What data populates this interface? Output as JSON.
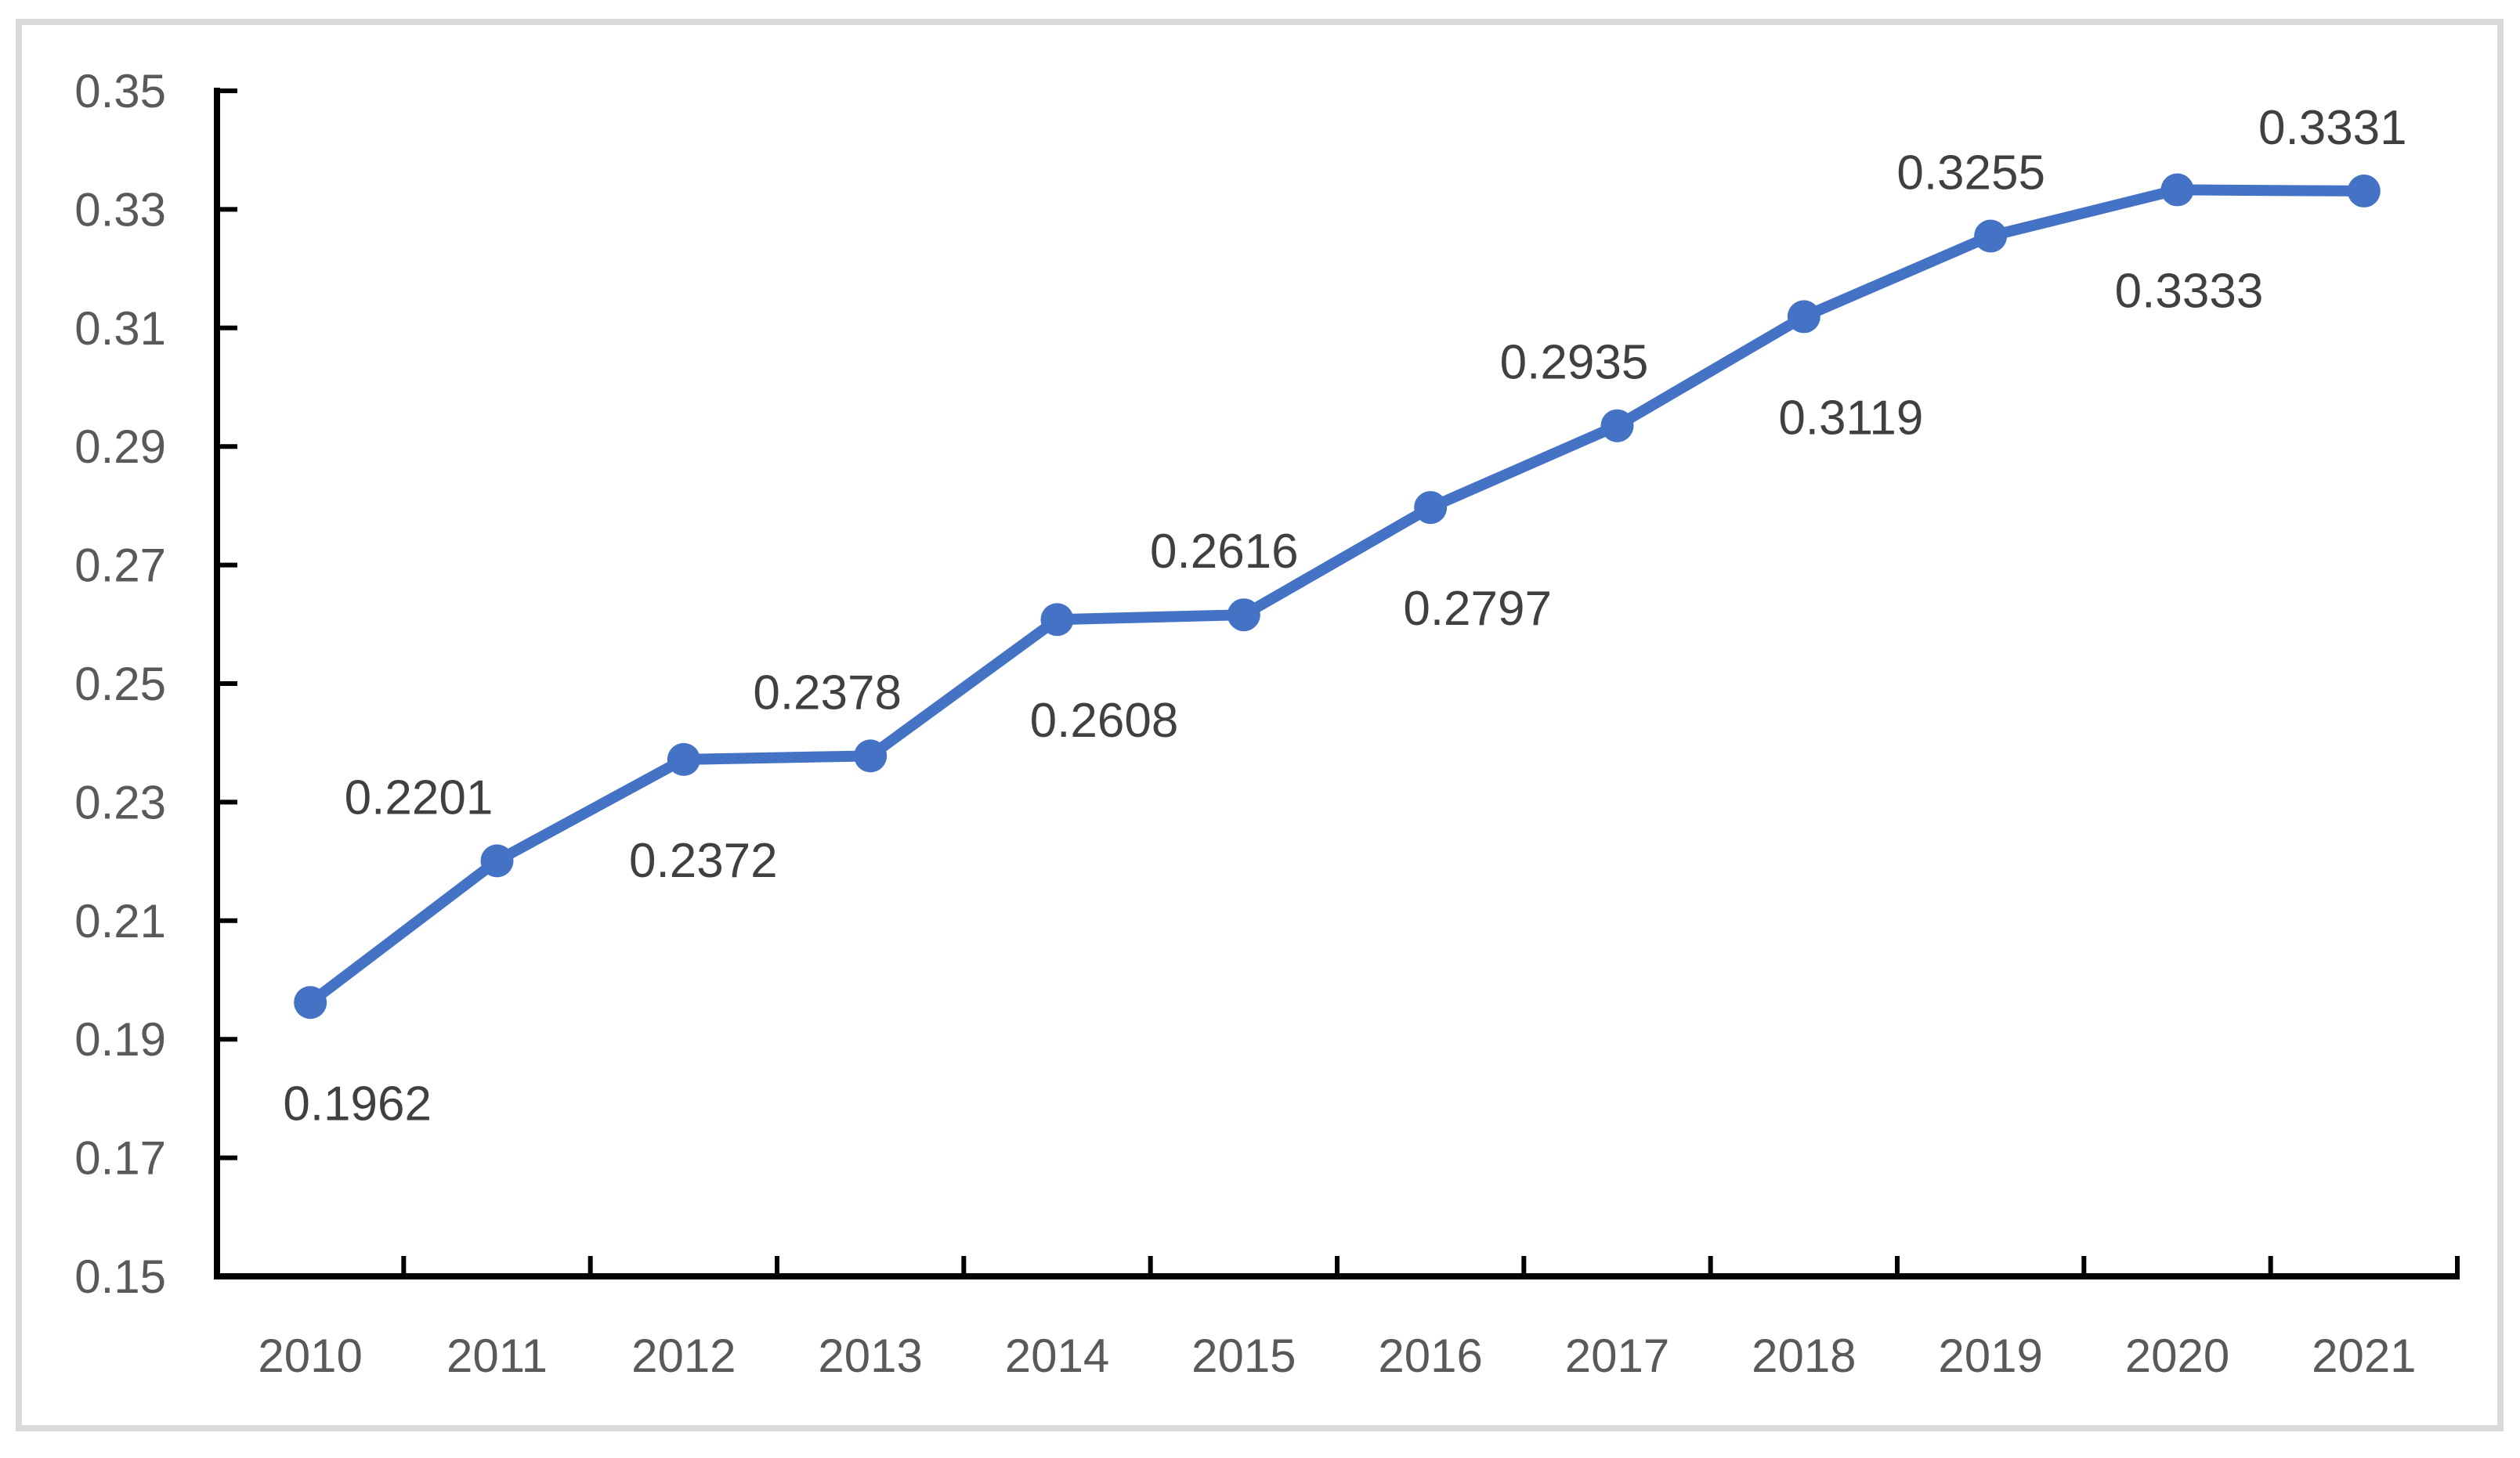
{
  "figure": {
    "background": "#FFFFFF",
    "border_color": "#D9D9D9"
  },
  "chart_data": {
    "type": "line",
    "title": "",
    "xlabel": "",
    "ylabel": "",
    "categories": [
      "2010",
      "2011",
      "2012",
      "2013",
      "2014",
      "2015",
      "2016",
      "2017",
      "2018",
      "2019",
      "2020",
      "2021"
    ],
    "values": [
      0.1962,
      0.2201,
      0.2372,
      0.2378,
      0.2608,
      0.2616,
      0.2797,
      0.2935,
      0.3119,
      0.3255,
      0.3333,
      0.3331
    ],
    "data_labels": [
      "0.1962",
      "0.2201",
      "0.2372",
      "0.2378",
      "0.2608",
      "0.2616",
      "0.2797",
      "0.2935",
      "0.3119",
      "0.3255",
      "0.3333",
      "0.3331"
    ],
    "ylim": [
      0.15,
      0.35
    ],
    "ytick_interval": 0.02,
    "ytick_labels": [
      "0.15",
      "0.17",
      "0.19",
      "0.21",
      "0.23",
      "0.25",
      "0.27",
      "0.29",
      "0.31",
      "0.33",
      "0.35"
    ],
    "grid": false,
    "legend": "none",
    "marker": "circle",
    "label_placement": "alternating: even-index points labeled below, odd-index points labeled above",
    "colors": {
      "line": "#4472C4",
      "marker": "#4472C4",
      "data_label": "#404040",
      "tick_label": "#595959",
      "axis": "#000000"
    }
  }
}
